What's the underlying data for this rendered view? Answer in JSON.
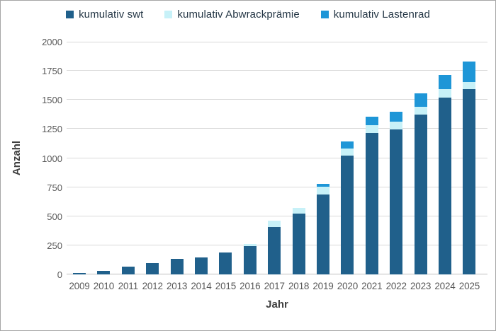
{
  "chart_data": {
    "type": "bar",
    "stacked": true,
    "title": "",
    "xlabel": "Jahr",
    "ylabel": "Anzahl",
    "ylim": [
      0,
      2000
    ],
    "ytick_step": 250,
    "yticks": [
      0,
      250,
      500,
      750,
      1000,
      1250,
      1500,
      1750,
      2000
    ],
    "grid": true,
    "legend_position": "top",
    "categories": [
      "2009",
      "2010",
      "2011",
      "2012",
      "2013",
      "2014",
      "2015",
      "2016",
      "2017",
      "2018",
      "2019",
      "2020",
      "2021",
      "2022",
      "2023",
      "2024",
      "2025"
    ],
    "series": [
      {
        "name": "kumulativ swt",
        "color": "#20608b",
        "values": [
          10,
          32,
          70,
          98,
          132,
          145,
          190,
          245,
          410,
          520,
          685,
          1020,
          1215,
          1245,
          1375,
          1520,
          1590
        ]
      },
      {
        "name": "kumulativ Abwrackprämie",
        "color": "#c7f1f8",
        "values": [
          0,
          0,
          0,
          0,
          0,
          0,
          0,
          15,
          50,
          50,
          70,
          60,
          65,
          70,
          65,
          70,
          65
        ]
      },
      {
        "name": "kumulativ Lastenrad",
        "color": "#1e96d7",
        "values": [
          0,
          0,
          0,
          0,
          0,
          0,
          0,
          0,
          0,
          0,
          25,
          65,
          75,
          85,
          115,
          125,
          175
        ]
      }
    ]
  },
  "colors": {
    "background": "#ffffff",
    "border": "#a6a6a6",
    "gridline": "#d9d9d9",
    "axis_line": "#bfbfbf",
    "tick_label": "#595959",
    "axis_title": "#3f3f3f",
    "legend_text": "#253746"
  }
}
